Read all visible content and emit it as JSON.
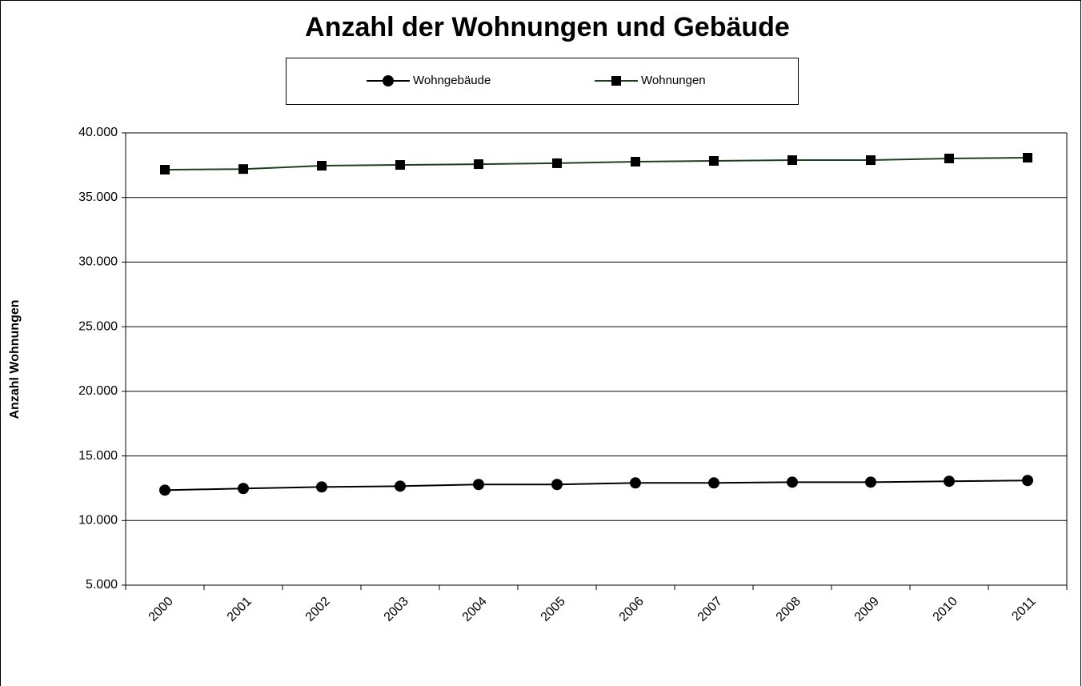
{
  "chart_data": {
    "type": "line",
    "title": "Anzahl der Wohnungen und Gebäude",
    "y_label": "Anzahl Wohnungen",
    "categories": [
      "2000",
      "2001",
      "2002",
      "2003",
      "2004",
      "2005",
      "2006",
      "2007",
      "2008",
      "2009",
      "2010",
      "2011"
    ],
    "series": [
      {
        "name": "Wohngebäude",
        "color": "#000000",
        "marker": "circle",
        "values": [
          12350,
          12480,
          12600,
          12660,
          12790,
          12790,
          12910,
          12910,
          12970,
          12970,
          13040,
          13100
        ]
      },
      {
        "name": "Wohnungen",
        "color": "#1f3f1f",
        "marker": "square",
        "values": [
          37150,
          37200,
          37460,
          37520,
          37580,
          37650,
          37770,
          37830,
          37890,
          37890,
          38020,
          38080
        ]
      }
    ],
    "ylim": [
      5000,
      40000
    ],
    "yticks": [
      {
        "value": 5000,
        "label": "5.000"
      },
      {
        "value": 10000,
        "label": "10.000"
      },
      {
        "value": 15000,
        "label": "15.000"
      },
      {
        "value": 20000,
        "label": "20.000"
      },
      {
        "value": 25000,
        "label": "25.000"
      },
      {
        "value": 30000,
        "label": "30.000"
      },
      {
        "value": 35000,
        "label": "35.000"
      },
      {
        "value": 40000,
        "label": "40.000"
      }
    ],
    "grid": true,
    "legend": "top"
  }
}
